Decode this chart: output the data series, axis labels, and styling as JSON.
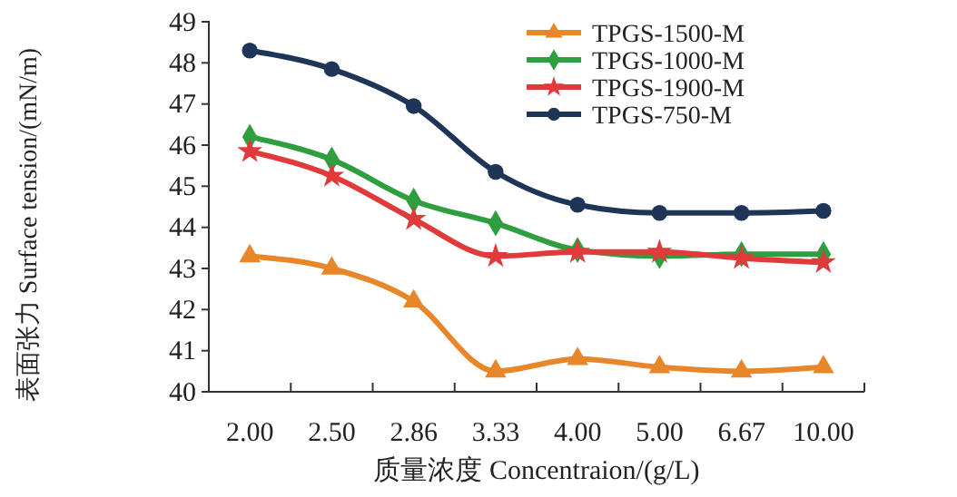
{
  "chart_data": {
    "type": "line",
    "xlabel": "质量浓度 Concentraion/(g/L)",
    "ylabel": "表面张力 Surface tension/(mN/m)",
    "categories": [
      "2.00",
      "2.50",
      "2.86",
      "3.33",
      "4.00",
      "5.00",
      "6.67",
      "10.00"
    ],
    "ylim": [
      40,
      49
    ],
    "yticks": [
      40,
      41,
      42,
      43,
      44,
      45,
      46,
      47,
      48,
      49
    ],
    "grid": false,
    "legend": "top right",
    "series": [
      {
        "name": "TPGS-1500-M",
        "color": "#e8862a",
        "marker": "triangle",
        "values": [
          43.3,
          43.0,
          42.2,
          40.5,
          40.8,
          40.6,
          40.5,
          40.6
        ]
      },
      {
        "name": "TPGS-1000-M",
        "color": "#2e9e3e",
        "marker": "diamond",
        "values": [
          46.2,
          45.65,
          44.65,
          44.1,
          43.45,
          43.3,
          43.35,
          43.35
        ]
      },
      {
        "name": "TPGS-1900-M",
        "color": "#e03a3a",
        "marker": "star",
        "values": [
          45.85,
          45.25,
          44.2,
          43.3,
          43.4,
          43.4,
          43.25,
          43.15
        ]
      },
      {
        "name": "TPGS-750-M",
        "color": "#1f3558",
        "marker": "circle",
        "values": [
          48.3,
          47.85,
          46.95,
          45.35,
          44.55,
          44.35,
          44.35,
          44.4
        ]
      }
    ]
  }
}
